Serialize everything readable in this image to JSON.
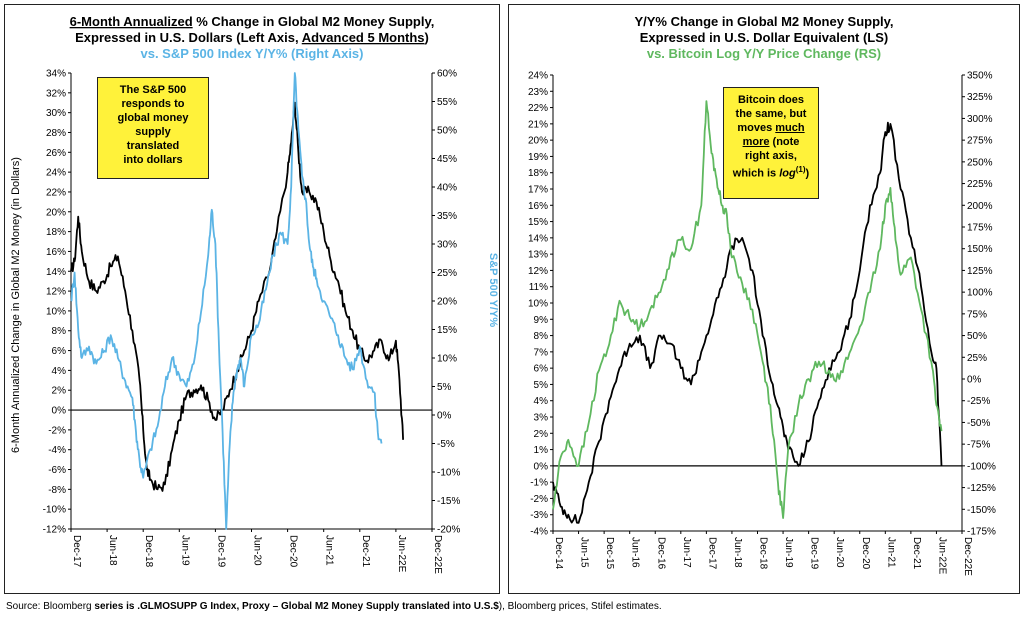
{
  "colors": {
    "m2": "#000000",
    "spx": "#5bb4e5",
    "btc": "#5fb85f"
  },
  "left": {
    "title_line1_a": "6-Month Annualized",
    "title_line1_b": " % Change in Global M2 Money Supply,",
    "title_line2_a": "Expressed in U.S. Dollars (Left Axis, ",
    "title_line2_b": "Advanced 5 Months",
    "title_line2_c": ")",
    "title_line3": "vs. S&P 500 Index Y/Y% (Right Axis)",
    "ylabel_left": "6-Month Annualized Change in Global M2 Money (in Dollars)",
    "ylabel_right": "S&P 500 Y/Y%",
    "note_lines": [
      "The S&P 500",
      "responds to",
      "global money",
      "supply",
      "translated",
      "into dollars"
    ]
  },
  "right": {
    "title_line1": "Y/Y% Change in Global M2 Money Supply,",
    "title_line2": "Expressed in U.S. Dollar Equivalent (LS)",
    "title_line3": "vs. Bitcoin Log Y/Y Price Change (RS)",
    "note_line1": "Bitcoin does",
    "note_line2": "the same, but",
    "note_line3_a": "moves ",
    "note_line3_b": "much",
    "note_line4_b": "more",
    "note_line4_c": " (note",
    "note_line5": "right axis,",
    "note_line6_a": "which is ",
    "note_line6_b": "log",
    "note_line6_sup": "(1)",
    "note_line6_c": ")"
  },
  "source": {
    "prefix": "Source: Bloomberg ",
    "bold": "series is .GLMOSUPP G Index, Proxy – Global M2 Money Supply translated into U.S.$",
    "suffix": "), Bloomberg prices, Stifel estimates."
  },
  "chart_data": [
    {
      "type": "line",
      "x_tick_labels": [
        "Dec-17",
        "Jun-18",
        "Dec-18",
        "Jun-19",
        "Dec-19",
        "Jun-20",
        "Dec-20",
        "Jun-21",
        "Dec-21",
        "Jun-22E",
        "Dec-22E"
      ],
      "y_left_ticks": [
        "-12%",
        "-10%",
        "-8%",
        "-6%",
        "-4%",
        "-2%",
        "0%",
        "2%",
        "4%",
        "6%",
        "8%",
        "10%",
        "12%",
        "14%",
        "16%",
        "18%",
        "20%",
        "22%",
        "24%",
        "26%",
        "28%",
        "30%",
        "32%",
        "34%"
      ],
      "y_right_ticks": [
        "-20%",
        "-15%",
        "-10%",
        "-5%",
        "0%",
        "5%",
        "10%",
        "15%",
        "20%",
        "25%",
        "30%",
        "35%",
        "40%",
        "45%",
        "50%",
        "55%",
        "60%"
      ],
      "ylim_left": [
        -12,
        34
      ],
      "ylim_right": [
        -20,
        60
      ],
      "xlim": [
        0,
        10
      ],
      "series": [
        {
          "axis": "left",
          "x": [
            0,
            0.1,
            0.2,
            0.3,
            0.5,
            0.7,
            0.9,
            1.1,
            1.3,
            1.5,
            1.7,
            1.9,
            2.0,
            2.1,
            2.2,
            2.4,
            2.6,
            2.8,
            3.0,
            3.2,
            3.4,
            3.6,
            3.8,
            4.0,
            4.2,
            4.4,
            4.6,
            4.8,
            5.0,
            5.2,
            5.5,
            5.7,
            6.0,
            6.1,
            6.2,
            6.3,
            6.4,
            6.6,
            6.8,
            7.0,
            7.2,
            7.4,
            7.6,
            7.8,
            8.0,
            8.2,
            8.4,
            8.6,
            8.8,
            9.0,
            9.1,
            9.2
          ],
          "values": [
            14,
            15,
            19.5,
            16,
            13,
            12,
            13,
            14.5,
            15.5,
            12,
            8,
            3,
            -2,
            -6,
            -7,
            -8,
            -7.5,
            -4,
            -1,
            1.5,
            2,
            2.5,
            1,
            -1,
            0,
            2,
            4,
            6,
            8,
            11,
            14,
            18,
            24,
            27,
            31,
            26,
            22,
            22,
            21,
            18,
            15,
            13,
            10,
            8,
            6,
            5,
            6,
            7,
            5,
            7,
            3,
            -3
          ]
        },
        {
          "axis": "right",
          "x": [
            0,
            0.1,
            0.2,
            0.3,
            0.5,
            0.7,
            0.9,
            1.1,
            1.3,
            1.5,
            1.7,
            1.8,
            1.9,
            2.0,
            2.2,
            2.4,
            2.6,
            2.8,
            3.0,
            3.2,
            3.4,
            3.6,
            3.8,
            3.9,
            4.0,
            4.1,
            4.2,
            4.3,
            4.4,
            4.5,
            4.6,
            4.7,
            4.8,
            5.0,
            5.2,
            5.4,
            5.6,
            5.8,
            6.0,
            6.1,
            6.2,
            6.3,
            6.4,
            6.5,
            6.6,
            6.7,
            6.8,
            7.0,
            7.2,
            7.4,
            7.6,
            7.8,
            8.0,
            8.2,
            8.4,
            8.5,
            8.6
          ],
          "values": [
            20,
            25,
            15,
            10,
            12,
            9,
            11,
            14,
            10,
            6,
            3,
            -3,
            -8,
            -11,
            -6,
            -2,
            5,
            10,
            7,
            5,
            9,
            18,
            28,
            36,
            30,
            12,
            -3,
            -20,
            -5,
            4,
            8,
            10,
            5,
            14,
            16,
            22,
            28,
            32,
            30,
            40,
            60,
            50,
            42,
            38,
            30,
            26,
            24,
            20,
            17,
            14,
            10,
            8,
            12,
            6,
            4,
            -3,
            -5
          ]
        }
      ]
    },
    {
      "type": "line",
      "x_tick_labels": [
        "Dec-14",
        "Jun-15",
        "Dec-15",
        "Jun-16",
        "Dec-16",
        "Jun-17",
        "Dec-17",
        "Jun-18",
        "Dec-18",
        "Jun-19",
        "Dec-19",
        "Jun-20",
        "Dec-20",
        "Jun-21",
        "Dec-21",
        "Jun-22E",
        "Dec-22E"
      ],
      "y_left_ticks": [
        "-4%",
        "-3%",
        "-2%",
        "-1%",
        "0%",
        "1%",
        "2%",
        "3%",
        "4%",
        "5%",
        "6%",
        "7%",
        "8%",
        "9%",
        "10%",
        "11%",
        "12%",
        "13%",
        "14%",
        "15%",
        "16%",
        "17%",
        "18%",
        "19%",
        "20%",
        "21%",
        "22%",
        "23%",
        "24%"
      ],
      "y_right_ticks": [
        "-175%",
        "-150%",
        "-125%",
        "-100%",
        "-75%",
        "-50%",
        "-25%",
        "0%",
        "25%",
        "50%",
        "75%",
        "100%",
        "125%",
        "150%",
        "175%",
        "200%",
        "225%",
        "250%",
        "275%",
        "300%",
        "325%",
        "350%"
      ],
      "ylim_left": [
        -4,
        24
      ],
      "ylim_right": [
        -175,
        350
      ],
      "xlim": [
        0,
        16
      ],
      "series": [
        {
          "axis": "left",
          "x": [
            0,
            0.3,
            0.6,
            1.0,
            1.4,
            1.8,
            2.2,
            2.6,
            3.0,
            3.4,
            3.8,
            4.2,
            4.6,
            5.0,
            5.4,
            5.8,
            6.2,
            6.6,
            7.0,
            7.4,
            7.8,
            8.2,
            8.6,
            8.9,
            9.2,
            9.6,
            10.0,
            10.4,
            10.8,
            11.2,
            11.6,
            12.0,
            12.4,
            12.8,
            13.0,
            13.2,
            13.6,
            14.0,
            14.4,
            14.8,
            15.0,
            15.2
          ],
          "values": [
            -1,
            -2.5,
            -3,
            -3.5,
            -1,
            1.5,
            4,
            6,
            7.5,
            8,
            6,
            8,
            7.5,
            6,
            5,
            7,
            9,
            11,
            13.5,
            14,
            12,
            8,
            5,
            3,
            1,
            0,
            1.5,
            4,
            6,
            7,
            9,
            12,
            16,
            18,
            20.5,
            21,
            17,
            14,
            11,
            7,
            6,
            0
          ]
        },
        {
          "axis": "right",
          "x": [
            0,
            0.3,
            0.6,
            1.0,
            1.4,
            1.8,
            2.2,
            2.6,
            3.0,
            3.4,
            3.8,
            4.2,
            4.6,
            5.0,
            5.4,
            5.8,
            6.0,
            6.2,
            6.4,
            6.6,
            6.8,
            7.0,
            7.4,
            7.8,
            8.2,
            8.5,
            8.8,
            9.0,
            9.2,
            9.6,
            10.0,
            10.4,
            10.8,
            11.2,
            11.6,
            12.0,
            12.4,
            12.8,
            13.0,
            13.2,
            13.4,
            13.6,
            14.0,
            14.4,
            14.8,
            15.0,
            15.2
          ],
          "values": [
            -150,
            -90,
            -70,
            -100,
            -50,
            10,
            40,
            90,
            70,
            60,
            80,
            100,
            140,
            160,
            150,
            200,
            320,
            260,
            230,
            200,
            190,
            140,
            110,
            80,
            20,
            -30,
            -120,
            -160,
            -80,
            -30,
            0,
            20,
            10,
            0,
            30,
            60,
            100,
            150,
            200,
            220,
            160,
            120,
            140,
            80,
            20,
            -30,
            -60
          ]
        }
      ]
    }
  ]
}
